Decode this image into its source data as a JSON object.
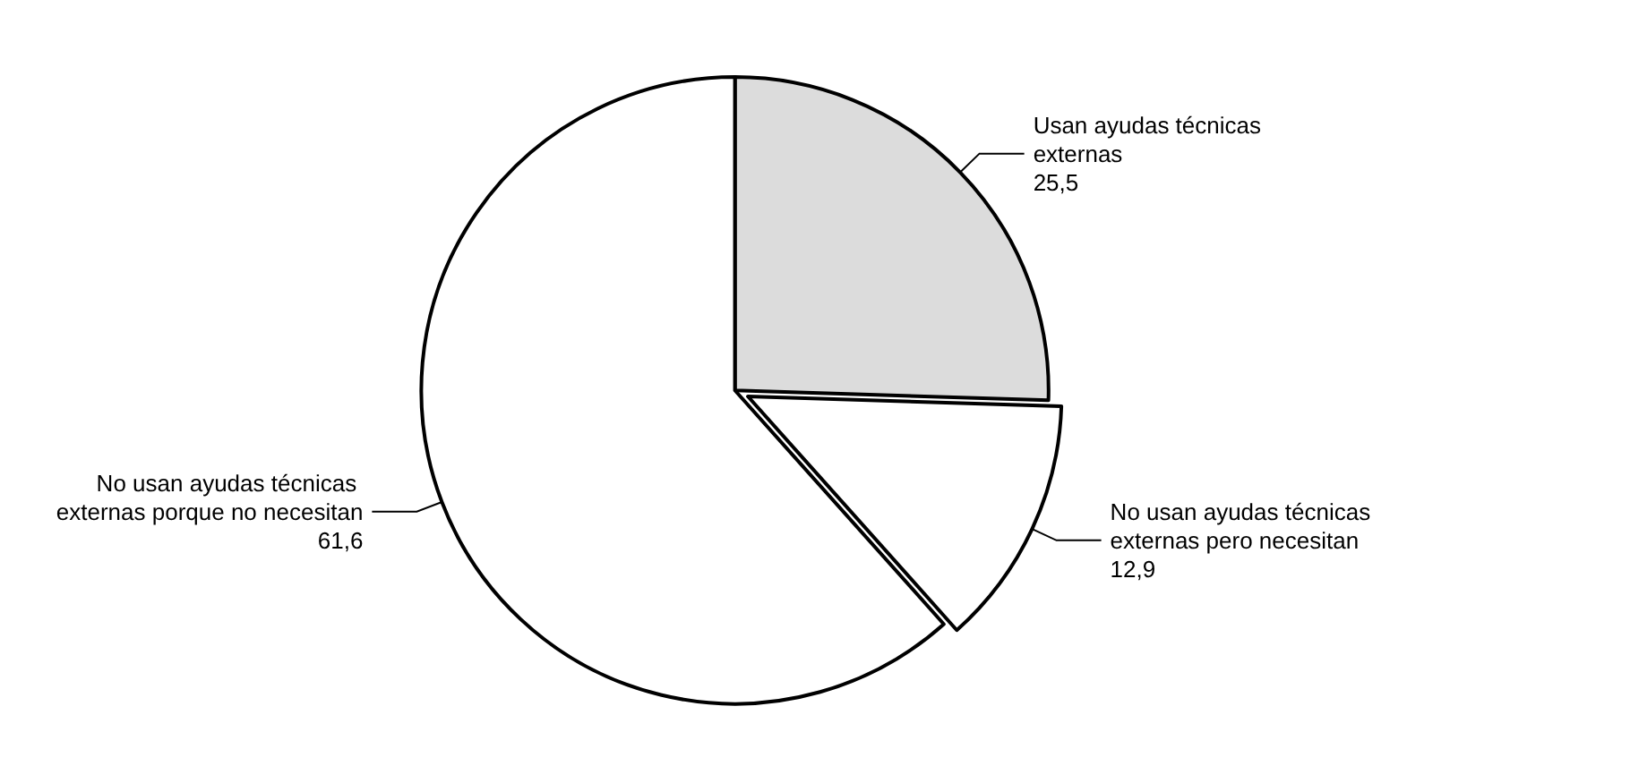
{
  "chart_data": {
    "type": "pie",
    "categories": [
      "Usan ayudas técnicas externas",
      "No usan ayudas técnicas externas pero necesitan",
      "No usan ayudas técnicas externas porque no necesitan"
    ],
    "values": [
      25.5,
      12.9,
      61.6
    ],
    "value_labels": [
      "25,5",
      "12,9",
      "61,6"
    ],
    "colors": [
      "#dcdcdc",
      "#ffffff",
      "#ffffff"
    ],
    "legend": false
  }
}
